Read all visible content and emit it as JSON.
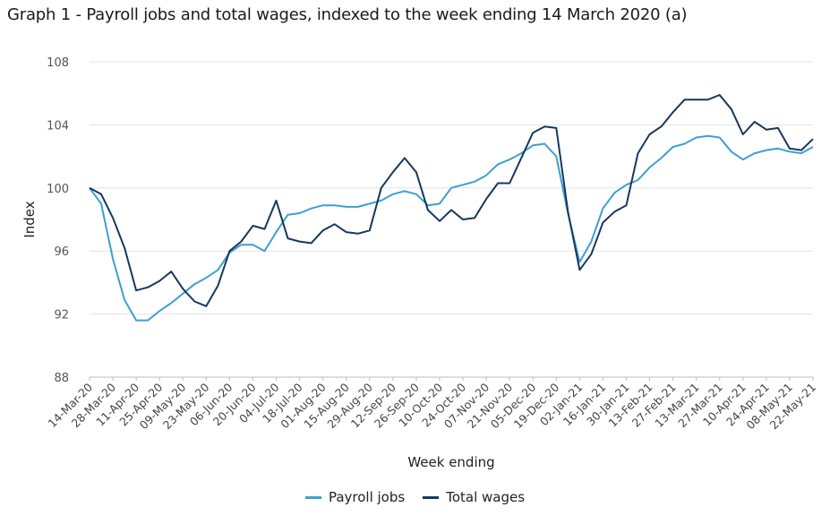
{
  "title": "Graph 1 - Payroll jobs and total wages, indexed to the week ending 14 March 2020 (a)",
  "chart_data": {
    "type": "line",
    "xlabel": "Week ending",
    "ylabel": "Index",
    "ylim": [
      88,
      108
    ],
    "yticks": [
      88,
      92,
      96,
      100,
      104,
      108
    ],
    "grid": true,
    "legend_position": "bottom",
    "x_tick_labels": [
      "14-Mar-20",
      "28-Mar-20",
      "11-Apr-20",
      "25-Apr-20",
      "09-May-20",
      "23-May-20",
      "06-Jun-20",
      "20-Jun-20",
      "04-Jul-20",
      "18-Jul-20",
      "01-Aug-20",
      "15-Aug-20",
      "29-Aug-20",
      "12-Sep-20",
      "26-Sep-20",
      "10-Oct-20",
      "24-Oct-20",
      "07-Nov-20",
      "21-Nov-20",
      "05-Dec-20",
      "19-Dec-20",
      "02-Jan-21",
      "16-Jan-21",
      "30-Jan-21",
      "13-Feb-21",
      "27-Feb-21",
      "13-Mar-21",
      "27-Mar-21",
      "10-Apr-21",
      "24-Apr-21",
      "08-May-21",
      "22-May-21"
    ],
    "series": [
      {
        "name": "Payroll jobs",
        "color": "#3d9fd3",
        "values": [
          100.0,
          99.0,
          95.5,
          92.9,
          91.6,
          91.6,
          92.2,
          92.7,
          93.3,
          93.9,
          94.3,
          94.8,
          95.9,
          96.4,
          96.4,
          96.0,
          97.2,
          98.3,
          98.4,
          98.7,
          98.9,
          98.9,
          98.8,
          98.8,
          99.0,
          99.2,
          99.6,
          99.8,
          99.6,
          98.9,
          99.0,
          100.0,
          100.2,
          100.4,
          100.8,
          101.5,
          101.8,
          102.2,
          102.7,
          102.8,
          102.0,
          98.4,
          95.3,
          96.6,
          98.7,
          99.7,
          100.2,
          100.5,
          101.3,
          101.9,
          102.6,
          102.8,
          103.2,
          103.3,
          103.2,
          102.3,
          101.8,
          102.2,
          102.4,
          102.5,
          102.3,
          102.2,
          102.6
        ]
      },
      {
        "name": "Total wages",
        "color": "#17385e",
        "values": [
          100.0,
          99.6,
          98.1,
          96.2,
          93.5,
          93.7,
          94.1,
          94.7,
          93.6,
          92.8,
          92.5,
          93.8,
          96.0,
          96.6,
          97.6,
          97.4,
          99.2,
          96.8,
          96.6,
          96.5,
          97.3,
          97.7,
          97.2,
          97.1,
          97.3,
          100.0,
          101.0,
          101.9,
          101.0,
          98.6,
          97.9,
          98.6,
          98.0,
          98.1,
          99.3,
          100.3,
          100.3,
          101.9,
          103.5,
          103.9,
          103.8,
          98.5,
          94.8,
          95.8,
          97.8,
          98.5,
          98.9,
          102.2,
          103.4,
          103.9,
          104.8,
          105.6,
          105.6,
          105.6,
          105.9,
          105.0,
          103.4,
          104.2,
          103.7,
          103.8,
          102.5,
          102.4,
          103.1
        ]
      }
    ]
  }
}
